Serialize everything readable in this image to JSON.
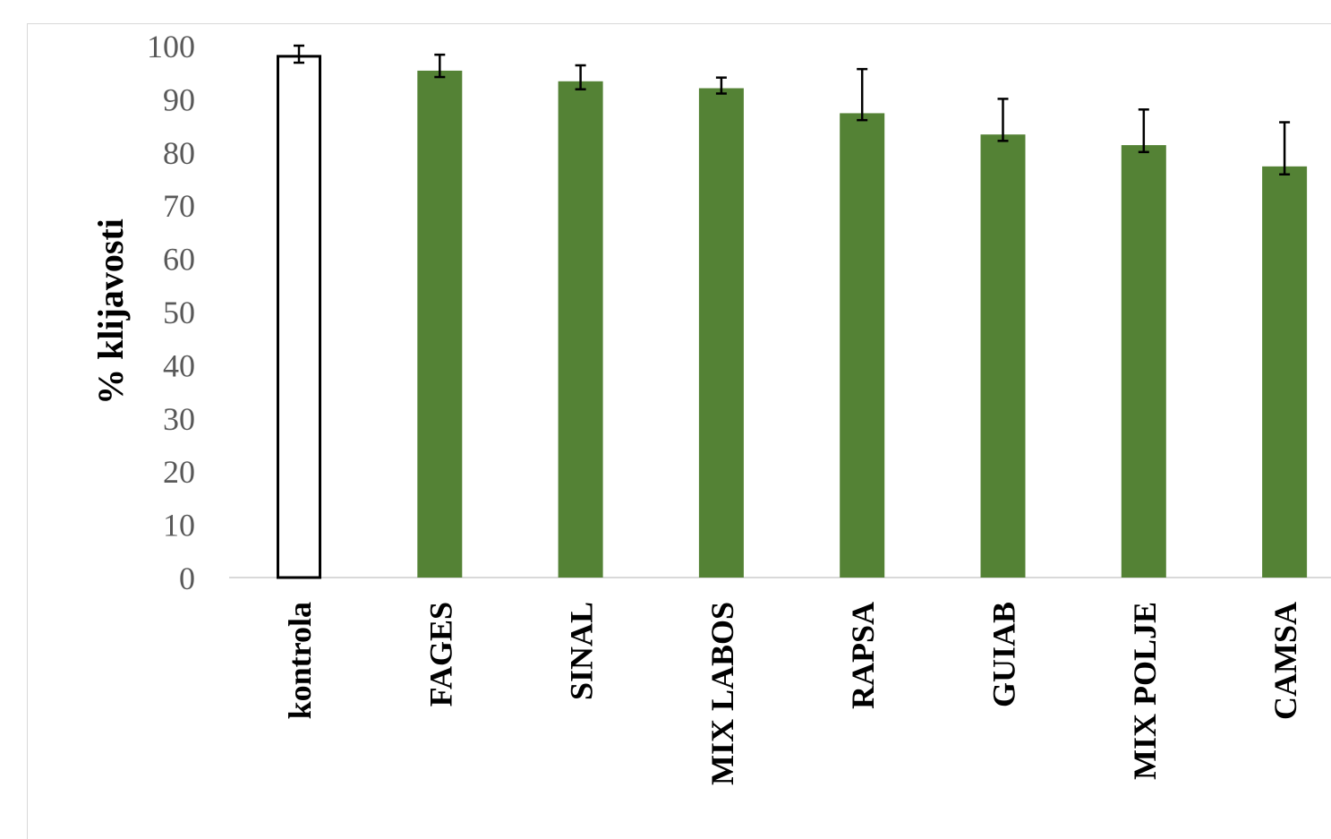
{
  "chart_data": {
    "type": "bar",
    "title": "",
    "xlabel": "",
    "ylabel": "% klijavosti",
    "ylim": [
      0,
      100
    ],
    "yticks": [
      0,
      10,
      20,
      30,
      40,
      50,
      60,
      70,
      80,
      90,
      100
    ],
    "grid": false,
    "legend": "none",
    "categories": [
      "kontrola",
      "FAGES",
      "SINAL",
      "MIX LABOS",
      "RAPSA",
      "GUIAB",
      "MIX POLJE",
      "CAMSA"
    ],
    "values": [
      98,
      95.3,
      93.3,
      92,
      87.3,
      83.3,
      81.3,
      77.3
    ],
    "error_plus": [
      2,
      3,
      3,
      2,
      8.3,
      6.7,
      6.7,
      8.3
    ],
    "error_minus": [
      1.2,
      1.2,
      1.5,
      1,
      1.3,
      1.2,
      1.3,
      1.5
    ],
    "styles": [
      "outline",
      "filled",
      "filled",
      "filled",
      "filled",
      "filled",
      "filled",
      "filled"
    ],
    "colors": {
      "bar_fill": "#548235",
      "outline_stroke": "#000000",
      "outline_fill": "#ffffff",
      "error_bar": "#000000",
      "axis_line": "#d9d9d9",
      "tick_text": "#595959"
    }
  }
}
